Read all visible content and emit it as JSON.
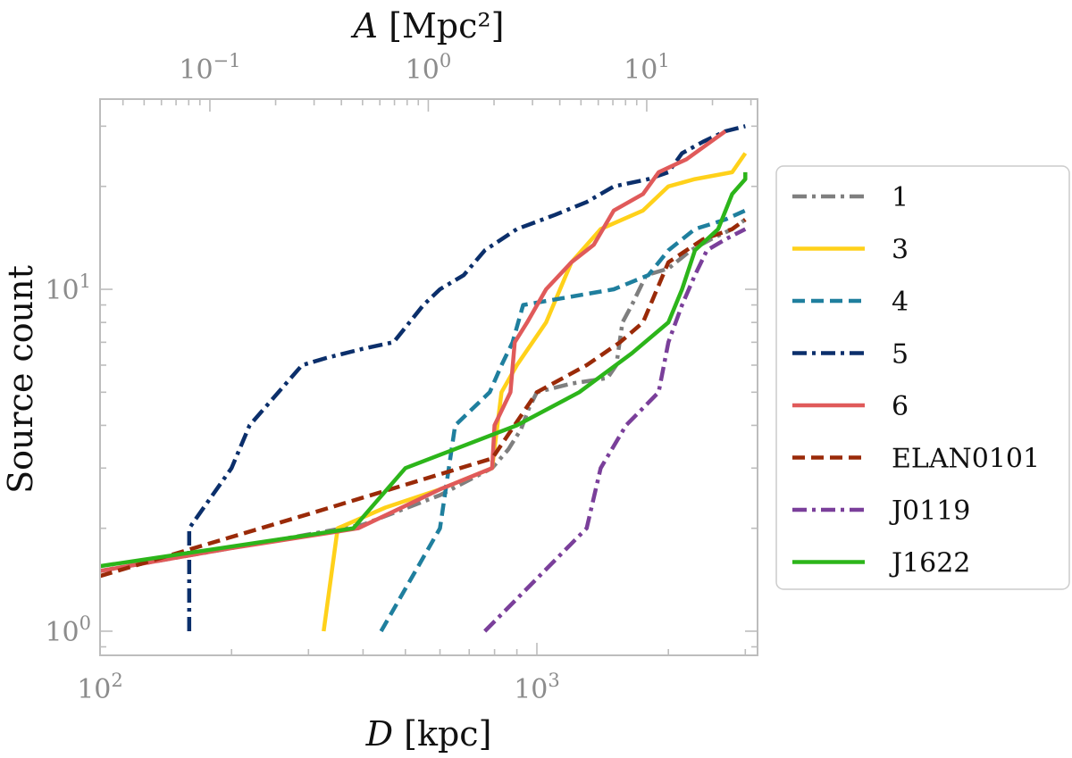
{
  "chart_data": {
    "type": "line",
    "xlabel": "D [kpc]",
    "ylabel": "Source count",
    "top_xlabel": "A [Mpc²]",
    "xscale": "log",
    "yscale": "log",
    "xlim": [
      100,
      3200
    ],
    "ylim": [
      0.85,
      36
    ],
    "x_ticks": [
      {
        "value": 100,
        "base": "10",
        "exp": "2"
      },
      {
        "value": 1000,
        "base": "10",
        "exp": "3"
      }
    ],
    "y_ticks": [
      {
        "value": 1,
        "base": "10",
        "exp": "0"
      },
      {
        "value": 10,
        "base": "10",
        "exp": "1"
      }
    ],
    "top_ticks": [
      {
        "value": 0.1,
        "base": "10",
        "exp": "−1"
      },
      {
        "value": 1,
        "base": "10",
        "exp": "0"
      },
      {
        "value": 10,
        "base": "10",
        "exp": "1"
      }
    ],
    "grid": false,
    "legend_position": "outside-right",
    "series": [
      {
        "name": "1",
        "color": "#7f7f7f",
        "dash": "dashdot",
        "points": [
          [
            100,
            1.5
          ],
          [
            200,
            1.75
          ],
          [
            400,
            2.05
          ],
          [
            600,
            2.5
          ],
          [
            790,
            3
          ],
          [
            860,
            3.4
          ],
          [
            920,
            3.9
          ],
          [
            960,
            4.5
          ],
          [
            1000,
            5
          ],
          [
            1200,
            5.3
          ],
          [
            1450,
            5.5
          ],
          [
            1520,
            6
          ],
          [
            1570,
            8
          ],
          [
            1650,
            9
          ],
          [
            1780,
            11
          ],
          [
            2000,
            11.5
          ],
          [
            2250,
            13
          ],
          [
            2500,
            14
          ],
          [
            2800,
            15
          ],
          [
            3000,
            16
          ]
        ]
      },
      {
        "name": "3",
        "color": "#ffd11a",
        "dash": "solid",
        "points": [
          [
            325,
            1
          ],
          [
            350,
            2
          ],
          [
            450,
            2.3
          ],
          [
            600,
            2.6
          ],
          [
            790,
            3
          ],
          [
            830,
            5
          ],
          [
            900,
            6
          ],
          [
            1050,
            8
          ],
          [
            1200,
            12
          ],
          [
            1400,
            15
          ],
          [
            1750,
            17
          ],
          [
            2000,
            20
          ],
          [
            2300,
            21
          ],
          [
            2800,
            22
          ],
          [
            3000,
            25
          ]
        ]
      },
      {
        "name": "4",
        "color": "#1f7f9e",
        "dash": "dashed",
        "points": [
          [
            440,
            1
          ],
          [
            600,
            2
          ],
          [
            650,
            4
          ],
          [
            780,
            5
          ],
          [
            830,
            6
          ],
          [
            880,
            7
          ],
          [
            930,
            9
          ],
          [
            1500,
            10
          ],
          [
            1800,
            11
          ],
          [
            2000,
            13
          ],
          [
            2300,
            15
          ],
          [
            2700,
            16
          ],
          [
            3000,
            17
          ]
        ]
      },
      {
        "name": "5",
        "color": "#0b2f6b",
        "dash": "dashdot",
        "points": [
          [
            160,
            1
          ],
          [
            160,
            2
          ],
          [
            200,
            3
          ],
          [
            220,
            4
          ],
          [
            290,
            6
          ],
          [
            330,
            6.3
          ],
          [
            400,
            6.7
          ],
          [
            470,
            7
          ],
          [
            550,
            9
          ],
          [
            600,
            10
          ],
          [
            680,
            11
          ],
          [
            760,
            13
          ],
          [
            900,
            15
          ],
          [
            1100,
            16.5
          ],
          [
            1300,
            18
          ],
          [
            1500,
            20
          ],
          [
            1800,
            21
          ],
          [
            2000,
            22
          ],
          [
            2150,
            25
          ],
          [
            2400,
            27
          ],
          [
            2700,
            29
          ],
          [
            3000,
            30
          ]
        ]
      },
      {
        "name": "6",
        "color": "#e05a5a",
        "dash": "solid",
        "points": [
          [
            100,
            1.5
          ],
          [
            200,
            1.75
          ],
          [
            390,
            2
          ],
          [
            600,
            2.6
          ],
          [
            790,
            3
          ],
          [
            800,
            4
          ],
          [
            870,
            5
          ],
          [
            890,
            7
          ],
          [
            950,
            8
          ],
          [
            1050,
            10
          ],
          [
            1200,
            12
          ],
          [
            1350,
            13.5
          ],
          [
            1500,
            17
          ],
          [
            1750,
            19
          ],
          [
            1900,
            22
          ],
          [
            2200,
            24
          ],
          [
            2400,
            26
          ],
          [
            2700,
            29
          ]
        ]
      },
      {
        "name": "ELAN0101",
        "color": "#9a2a08",
        "dash": "dashed",
        "points": [
          [
            100,
            1.45
          ],
          [
            300,
            2.2
          ],
          [
            790,
            3.2
          ],
          [
            1000,
            5
          ],
          [
            1300,
            6
          ],
          [
            1550,
            7
          ],
          [
            1750,
            8
          ],
          [
            2000,
            12
          ],
          [
            2400,
            14
          ],
          [
            2800,
            15
          ],
          [
            3000,
            16
          ]
        ]
      },
      {
        "name": "J0119",
        "color": "#7a3f9a",
        "dash": "dashdot",
        "points": [
          [
            760,
            1
          ],
          [
            1300,
            2
          ],
          [
            1400,
            3
          ],
          [
            1600,
            4
          ],
          [
            1900,
            5
          ],
          [
            2000,
            7
          ],
          [
            2150,
            9
          ],
          [
            2300,
            11
          ],
          [
            2450,
            13
          ],
          [
            2700,
            14
          ],
          [
            3000,
            15
          ]
        ]
      },
      {
        "name": "J1622",
        "color": "#2cb51a",
        "dash": "solid",
        "points": [
          [
            100,
            1.55
          ],
          [
            380,
            2
          ],
          [
            500,
            3
          ],
          [
            900,
            4
          ],
          [
            1250,
            5
          ],
          [
            1650,
            6.5
          ],
          [
            2000,
            8
          ],
          [
            2150,
            10
          ],
          [
            2300,
            13
          ],
          [
            2600,
            15
          ],
          [
            2800,
            19
          ],
          [
            3000,
            21
          ],
          [
            3000,
            22
          ]
        ]
      }
    ]
  }
}
